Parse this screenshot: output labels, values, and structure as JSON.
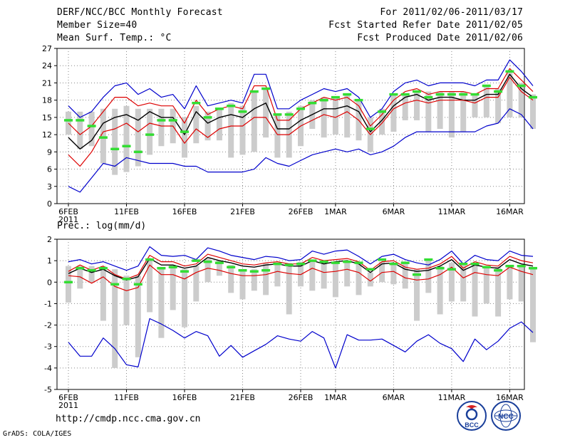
{
  "header": {
    "title": "DERF/NCC/BCC Monthly Forecast",
    "member_size": "Member Size=40",
    "variable": "Mean Surf. Temp.: °C",
    "period": "For 2011/02/06-2011/03/17",
    "started": "Fcst Started Refer Date 2011/02/05",
    "produced": "Fcst Produced Date 2011/02/06"
  },
  "footer": {
    "url": "http://cmdp.ncc.cma.gov.cn",
    "credit": "GrADS: COLA/IGES",
    "logo_bcc": "BCC",
    "logo_ncc": "NCC"
  },
  "colors": {
    "min_max": "#0000cc",
    "spread": "#dd0000",
    "mean": "#000000",
    "observed": "#33dd33",
    "bar": "#cccccc",
    "grid": "#888888"
  },
  "chart_data": [
    {
      "type": "line",
      "title": "Mean Surf. Temp.: °C",
      "x_tick_labels": [
        "6FEB",
        "11FEB",
        "16FEB",
        "21FEB",
        "26FEB",
        "1MAR",
        "6MAR",
        "11MAR",
        "16MAR"
      ],
      "x_tick_days": [
        0,
        5,
        10,
        15,
        20,
        23,
        28,
        33,
        38
      ],
      "year_label": "2011",
      "ylim": [
        0,
        27
      ],
      "yticks": [
        0,
        3,
        6,
        9,
        12,
        15,
        18,
        21,
        24,
        27
      ],
      "series": [
        {
          "name": "max",
          "values": [
            17,
            15,
            16,
            18.5,
            20.5,
            21,
            19,
            20,
            18.5,
            19,
            16.5,
            20.5,
            17,
            17.5,
            18,
            17.5,
            22.5,
            22.5,
            16.5,
            16.5,
            18,
            19,
            20,
            19.5,
            20,
            18.5,
            15,
            16.5,
            19.5,
            21,
            21.5,
            20.5,
            21,
            21,
            21,
            20.5,
            21.5,
            21.5,
            25,
            23,
            20.5
          ]
        },
        {
          "name": "upper",
          "values": [
            14,
            12,
            13.5,
            16,
            18.5,
            18.5,
            17,
            17.5,
            17,
            17,
            14,
            18,
            15.5,
            16.5,
            17,
            16.5,
            20.5,
            20.5,
            14.5,
            14.5,
            16.5,
            17.5,
            18.5,
            18,
            18.5,
            17,
            13.5,
            15.5,
            18,
            19.5,
            20,
            19,
            19.5,
            19.5,
            19.5,
            19,
            20,
            20,
            23.5,
            21.5,
            19.5
          ]
        },
        {
          "name": "mean",
          "values": [
            11.5,
            9.5,
            11,
            14,
            15,
            15.5,
            14.5,
            16,
            15,
            15,
            12,
            16,
            14,
            15,
            15.5,
            15,
            16.5,
            17.5,
            13,
            13,
            14.5,
            15.5,
            16.5,
            16.5,
            17,
            16,
            12.5,
            14.5,
            17,
            18.5,
            19,
            18,
            18.5,
            18.5,
            18,
            18,
            19,
            19,
            22.5,
            20,
            18.5
          ]
        },
        {
          "name": "lower",
          "values": [
            8.5,
            6.5,
            9,
            12.5,
            13,
            14,
            12.5,
            14,
            13.5,
            13.5,
            10.5,
            13,
            11.5,
            13,
            13.5,
            13.5,
            15,
            15,
            12,
            12,
            13.5,
            14.5,
            15.5,
            15,
            16,
            14.5,
            12,
            14,
            16.5,
            17.5,
            18,
            17.5,
            18,
            18,
            18,
            17.5,
            18.5,
            18.5,
            22,
            19.5,
            18
          ]
        },
        {
          "name": "min",
          "values": [
            3,
            2,
            4.5,
            7,
            6.5,
            8,
            7.5,
            7,
            7,
            7,
            6.5,
            6.5,
            5.5,
            5.5,
            5.5,
            5.5,
            6,
            8,
            7,
            6.5,
            7.5,
            8.5,
            9,
            9.5,
            9,
            9.5,
            8.5,
            9,
            10,
            11.5,
            12.5,
            12.5,
            12.5,
            12.5,
            12.5,
            12.5,
            13.5,
            14,
            16.5,
            15.5,
            13
          ]
        },
        {
          "name": "observed",
          "values": [
            14.5,
            14.5,
            13.5,
            11.5,
            9.5,
            10,
            9,
            12,
            14.5,
            14.5,
            12.5,
            17.5,
            15,
            16.5,
            17,
            16,
            19.5,
            20,
            15.5,
            15.5,
            16.5,
            17.5,
            18,
            18.5,
            19,
            18,
            13,
            16,
            19,
            19,
            19.5,
            18.5,
            19,
            19,
            19,
            19,
            20.5,
            19.5,
            23,
            20.5,
            18.5
          ]
        }
      ],
      "bars": [
        {
          "top": 16,
          "bottom": 12
        },
        {
          "top": 16,
          "bottom": 9.5
        },
        {
          "top": 16,
          "bottom": 10
        },
        {
          "top": 16.5,
          "bottom": 7
        },
        {
          "top": 16.5,
          "bottom": 5
        },
        {
          "top": 17,
          "bottom": 5.5
        },
        {
          "top": 16.5,
          "bottom": 6.5
        },
        {
          "top": 16.5,
          "bottom": 8.5
        },
        {
          "top": 16.5,
          "bottom": 10
        },
        {
          "top": 16.5,
          "bottom": 10.5
        },
        {
          "top": 15,
          "bottom": 8
        },
        {
          "top": 17,
          "bottom": 10.5
        },
        {
          "top": 16,
          "bottom": 11
        },
        {
          "top": 16.5,
          "bottom": 11
        },
        {
          "top": 17.5,
          "bottom": 8
        },
        {
          "top": 17,
          "bottom": 8.5
        },
        {
          "top": 19.5,
          "bottom": 9
        },
        {
          "top": 20,
          "bottom": 11.5
        },
        {
          "top": 15.5,
          "bottom": 8
        },
        {
          "top": 16,
          "bottom": 8
        },
        {
          "top": 17,
          "bottom": 10
        },
        {
          "top": 18,
          "bottom": 13
        },
        {
          "top": 18.5,
          "bottom": 11.5
        },
        {
          "top": 18.5,
          "bottom": 12
        },
        {
          "top": 19,
          "bottom": 11.5
        },
        {
          "top": 18,
          "bottom": 11
        },
        {
          "top": 15,
          "bottom": 9
        },
        {
          "top": 16.5,
          "bottom": 12
        },
        {
          "top": 19,
          "bottom": 12.5
        },
        {
          "top": 19,
          "bottom": 14.5
        },
        {
          "top": 19.5,
          "bottom": 14.5
        },
        {
          "top": 19.5,
          "bottom": 12.5
        },
        {
          "top": 19.5,
          "bottom": 13
        },
        {
          "top": 19.5,
          "bottom": 11.5
        },
        {
          "top": 19.5,
          "bottom": 12.5
        },
        {
          "top": 19,
          "bottom": 15
        },
        {
          "top": 20.5,
          "bottom": 15
        },
        {
          "top": 20,
          "bottom": 14
        },
        {
          "top": 23,
          "bottom": 15
        },
        {
          "top": 21,
          "bottom": 15
        },
        {
          "top": 19,
          "bottom": 13
        }
      ]
    },
    {
      "type": "line",
      "title": "Prec.: log(mm/d)",
      "x_tick_labels": [
        "6FEB",
        "11FEB",
        "16FEB",
        "21FEB",
        "26FEB",
        "1MAR",
        "6MAR",
        "11MAR",
        "16MAR"
      ],
      "x_tick_days": [
        0,
        5,
        10,
        15,
        20,
        23,
        28,
        33,
        38
      ],
      "year_label": "2011",
      "ylim": [
        -5,
        2
      ],
      "yticks": [
        -5,
        -4,
        -3,
        -2,
        -1,
        0,
        1,
        2
      ],
      "series": [
        {
          "name": "max",
          "values": [
            0.95,
            1.05,
            0.85,
            0.95,
            0.75,
            0.55,
            0.75,
            1.65,
            1.25,
            1.2,
            1.25,
            1.05,
            1.6,
            1.45,
            1.25,
            1.15,
            1.05,
            1.2,
            1.15,
            1.0,
            1.05,
            1.45,
            1.3,
            1.45,
            1.5,
            1.2,
            0.85,
            1.2,
            1.3,
            1.05,
            0.9,
            0.8,
            1.05,
            1.45,
            0.85,
            1.25,
            1.05,
            1.0,
            1.45,
            1.25,
            1.2
          ]
        },
        {
          "name": "upper",
          "values": [
            0.5,
            0.8,
            0.55,
            0.75,
            0.35,
            0.15,
            0.35,
            1.25,
            0.95,
            0.95,
            0.75,
            0.85,
            1.3,
            1.15,
            1.0,
            0.85,
            0.8,
            0.9,
            0.95,
            0.85,
            0.85,
            1.15,
            1.0,
            1.05,
            1.1,
            0.95,
            0.55,
            0.95,
            1.0,
            0.7,
            0.6,
            0.65,
            0.85,
            1.2,
            0.65,
            0.95,
            0.8,
            0.75,
            1.2,
            1.0,
            0.9
          ]
        },
        {
          "name": "mean",
          "values": [
            0.4,
            0.65,
            0.45,
            0.6,
            0.3,
            0.1,
            0.25,
            1.1,
            0.8,
            0.8,
            0.65,
            0.75,
            1.15,
            1.0,
            0.9,
            0.75,
            0.7,
            0.8,
            0.85,
            0.75,
            0.75,
            1.0,
            0.85,
            0.95,
            1.0,
            0.85,
            0.45,
            0.85,
            0.9,
            0.6,
            0.5,
            0.55,
            0.75,
            1.05,
            0.55,
            0.8,
            0.7,
            0.65,
            1.05,
            0.85,
            0.75
          ]
        },
        {
          "name": "lower",
          "values": [
            0.3,
            0.25,
            -0.05,
            0.25,
            -0.2,
            -0.4,
            -0.25,
            0.8,
            0.35,
            0.35,
            0.15,
            0.45,
            0.65,
            0.55,
            0.4,
            0.3,
            0.3,
            0.35,
            0.5,
            0.4,
            0.35,
            0.65,
            0.45,
            0.5,
            0.6,
            0.45,
            0.05,
            0.45,
            0.5,
            0.2,
            0.1,
            0.15,
            0.35,
            0.7,
            0.2,
            0.45,
            0.35,
            0.3,
            0.7,
            0.5,
            0.35
          ]
        },
        {
          "name": "min",
          "values": [
            -2.8,
            -3.45,
            -3.45,
            -2.6,
            -3.1,
            -3.85,
            -3.95,
            -1.7,
            -1.95,
            -2.25,
            -2.6,
            -2.3,
            -2.5,
            -3.45,
            -2.95,
            -3.5,
            -3.2,
            -2.9,
            -2.5,
            -2.65,
            -2.75,
            -2.3,
            -2.6,
            -4.0,
            -2.45,
            -2.7,
            -2.7,
            -2.65,
            -2.95,
            -3.25,
            -2.75,
            -2.45,
            -2.85,
            -3.1,
            -3.7,
            -2.65,
            -3.15,
            -2.75,
            -2.15,
            -1.85,
            -2.35
          ]
        },
        {
          "name": "observed",
          "values": [
            0.0,
            0.65,
            0.55,
            0.65,
            -0.1,
            0.15,
            -0.1,
            1.05,
            0.65,
            0.7,
            0.5,
            1.0,
            0.95,
            0.9,
            0.7,
            0.55,
            0.5,
            0.55,
            0.85,
            0.8,
            0.85,
            1.0,
            0.95,
            0.9,
            0.95,
            0.9,
            0.6,
            1.05,
            0.85,
            0.9,
            0.35,
            1.05,
            0.65,
            0.6,
            0.85,
            0.85,
            0.7,
            0.55,
            0.75,
            0.75,
            0.65
          ]
        }
      ],
      "bars": [
        {
          "top": 0.75,
          "bottom": -0.95
        },
        {
          "top": 0.75,
          "bottom": -0.3
        },
        {
          "top": 0.75,
          "bottom": 0.0
        },
        {
          "top": 0.75,
          "bottom": -1.8
        },
        {
          "top": 0.6,
          "bottom": -4.0
        },
        {
          "top": 0.3,
          "bottom": -2.0
        },
        {
          "top": 0.3,
          "bottom": -3.5
        },
        {
          "top": 1.1,
          "bottom": -1.4
        },
        {
          "top": 0.7,
          "bottom": -2.6
        },
        {
          "top": 0.8,
          "bottom": -1.3
        },
        {
          "top": 0.6,
          "bottom": -2.1
        },
        {
          "top": 0.75,
          "bottom": -0.9
        },
        {
          "top": 1.1,
          "bottom": 0.0
        },
        {
          "top": 1.0,
          "bottom": 0.3
        },
        {
          "top": 0.8,
          "bottom": -0.5
        },
        {
          "top": 0.6,
          "bottom": -0.8
        },
        {
          "top": 0.6,
          "bottom": -0.4
        },
        {
          "top": 0.9,
          "bottom": -0.6
        },
        {
          "top": 0.85,
          "bottom": -0.2
        },
        {
          "top": 0.9,
          "bottom": -1.5
        },
        {
          "top": 0.95,
          "bottom": -0.2
        },
        {
          "top": 1.0,
          "bottom": -0.4
        },
        {
          "top": 1.0,
          "bottom": -0.3
        },
        {
          "top": 0.95,
          "bottom": -0.7
        },
        {
          "top": 1.0,
          "bottom": -0.2
        },
        {
          "top": 0.95,
          "bottom": -0.6
        },
        {
          "top": 0.45,
          "bottom": -0.2
        },
        {
          "top": 0.95,
          "bottom": 0.0
        },
        {
          "top": 0.9,
          "bottom": -0.1
        },
        {
          "top": 0.95,
          "bottom": -0.3
        },
        {
          "top": 0.6,
          "bottom": -1.8
        },
        {
          "top": 1.05,
          "bottom": -0.5
        },
        {
          "top": 0.75,
          "bottom": -1.5
        },
        {
          "top": 0.9,
          "bottom": -0.9
        },
        {
          "top": 0.85,
          "bottom": -0.9
        },
        {
          "top": 0.85,
          "bottom": -1.6
        },
        {
          "top": 0.75,
          "bottom": -1.0
        },
        {
          "top": 0.7,
          "bottom": -1.6
        },
        {
          "top": 0.75,
          "bottom": -0.8
        },
        {
          "top": 0.75,
          "bottom": -0.9
        },
        {
          "top": 0.7,
          "bottom": -2.8
        }
      ]
    }
  ]
}
